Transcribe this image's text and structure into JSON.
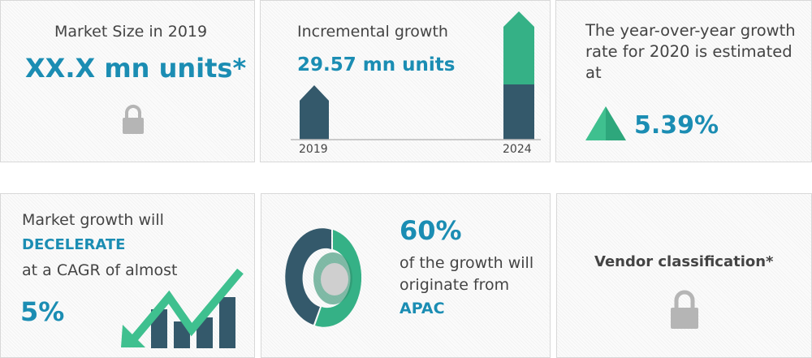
{
  "market_size": {
    "label": "Market Size in 2019",
    "value": "XX.X mn units*",
    "icon": "lock-icon"
  },
  "incremental": {
    "label": "Incremental growth",
    "value": "29.57 mn units",
    "years": [
      "2019",
      "2024"
    ]
  },
  "yoy": {
    "label": "The year-over-year growth rate for 2020 is estimated at",
    "value": "5.39%",
    "icon": "triangle-up-icon"
  },
  "cagr": {
    "line1": "Market growth will",
    "emphasis": "DECELERATE",
    "line2": "at a CAGR of almost",
    "value": "5%"
  },
  "region": {
    "value": "60%",
    "line1": "of the growth will",
    "line2": "originate from",
    "region": "APAC"
  },
  "vendor": {
    "label": "Vendor classification*",
    "icon": "lock-icon"
  },
  "colors": {
    "accent": "#1b8db3",
    "dark": "#34596b",
    "green": "#35b186"
  }
}
